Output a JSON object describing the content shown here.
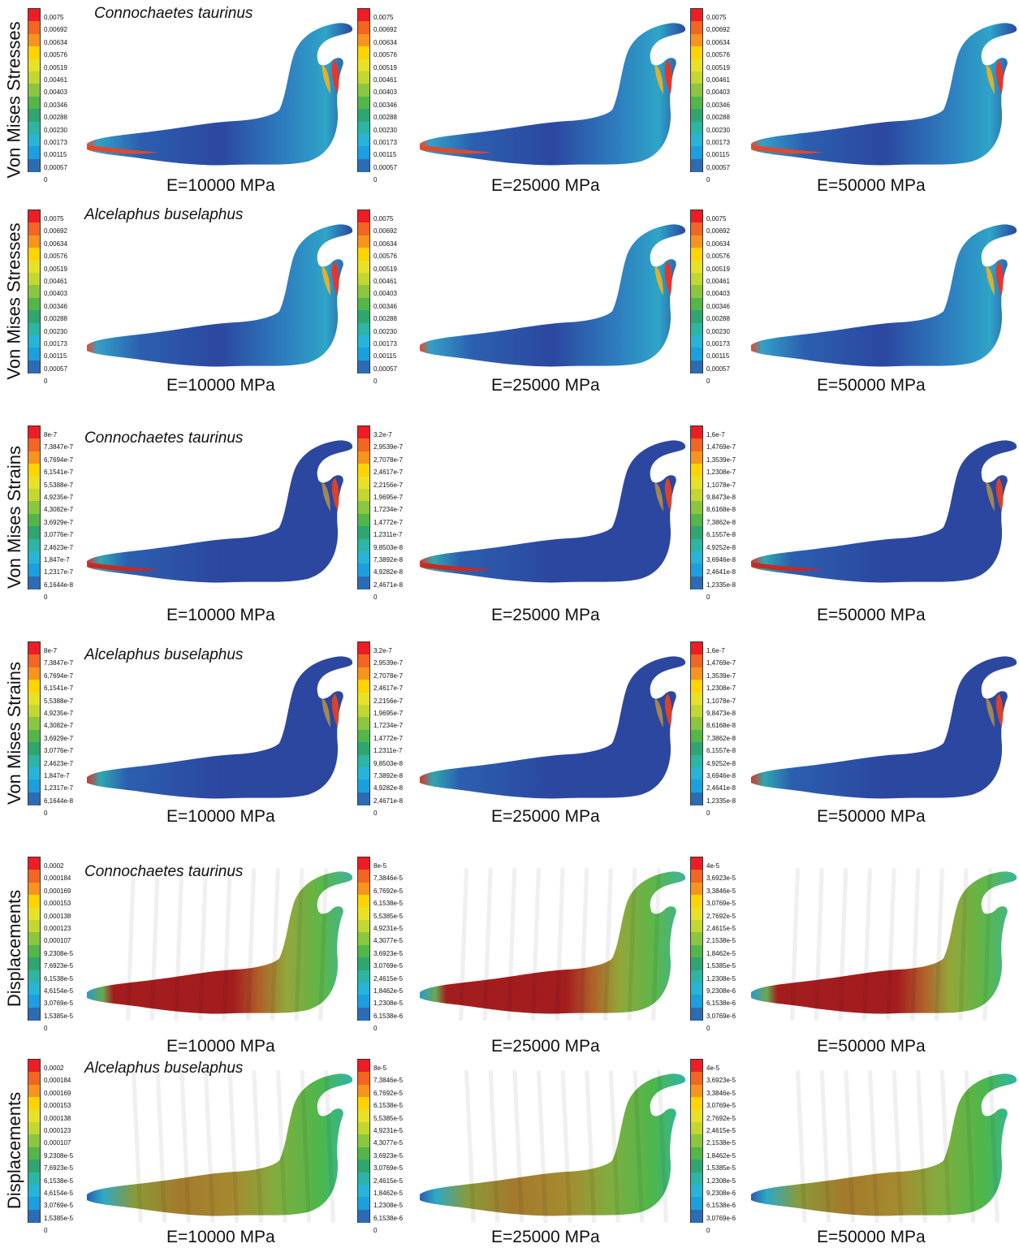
{
  "row_labels": {
    "stress": "Von Mises Stresses",
    "strain": "Von Mises Strains",
    "disp": "Displacements"
  },
  "species": {
    "connochaetes": "Connochaetes taurinus",
    "alcelaphus": "Alcelaphus buselaphus"
  },
  "moduli": [
    "E=10000 MPa",
    "E=25000 MPa",
    "E=50000 MPa"
  ],
  "colors": {
    "scale": [
      "#ee1c24",
      "#f26522",
      "#f7941d",
      "#ffd400",
      "#e7e227",
      "#c3d72f",
      "#8bc63f",
      "#52b748",
      "#2fa670",
      "#2cb5a5",
      "#26b5d6",
      "#1c9fde",
      "#2b6cb5",
      "#2e4a9f"
    ],
    "stress_map_primary": "#2c47a0",
    "disp_map_high": "#a31d1f"
  },
  "legends": {
    "stress": [
      "0,0075",
      "0,00692",
      "0,00634",
      "0,00576",
      "0,00519",
      "0,00461",
      "0,00403",
      "0,00346",
      "0,00288",
      "0,00230",
      "0,00173",
      "0,00115",
      "0,00057",
      "0"
    ],
    "strain_10000": [
      "8e-7",
      "7,3847e-7",
      "6,7694e-7",
      "6,1541e-7",
      "5,5388e-7",
      "4,9235e-7",
      "4,3082e-7",
      "3,6929e-7",
      "3,0776e-7",
      "2,4623e-7",
      "1,847e-7",
      "1,2317e-7",
      "6,1644e-8",
      "0"
    ],
    "strain_25000": [
      "3,2e-7",
      "2,9539e-7",
      "2,7078e-7",
      "2,4617e-7",
      "2,2156e-7",
      "1,9695e-7",
      "1,7234e-7",
      "1,4772e-7",
      "1,2311e-7",
      "9,8503e-8",
      "7,3892e-8",
      "4,9282e-8",
      "2,4671e-8",
      "0"
    ],
    "strain_50000": [
      "1,6e-7",
      "1,4769e-7",
      "1,3539e-7",
      "1,2308e-7",
      "1,1078e-7",
      "9,8473e-8",
      "8,6168e-8",
      "7,3862e-8",
      "6,1557e-8",
      "4,9252e-8",
      "3,6946e-8",
      "2,4641e-8",
      "1,2335e-8",
      "0"
    ],
    "disp_10000": [
      "0,0002",
      "0,000184",
      "0,000169",
      "0,000153",
      "0,000138",
      "0,000123",
      "0,000107",
      "9,2308e-5",
      "7,6923e-5",
      "6,1538e-5",
      "4,6154e-5",
      "3,0769e-5",
      "1,5385e-5",
      "0"
    ],
    "disp_25000": [
      "8e-5",
      "7,3846e-5",
      "6,7692e-5",
      "6,1538e-5",
      "5,5385e-5",
      "4,9231e-5",
      "4,3077e-5",
      "3,6923e-5",
      "3,0769e-5",
      "2,4615e-5",
      "1,8462e-5",
      "1,2308e-5",
      "6,1538e-6",
      "0"
    ],
    "disp_50000": [
      "4e-5",
      "3,6923e-5",
      "3,3846e-5",
      "3,0769e-5",
      "2,7692e-5",
      "2,4615e-5",
      "2,1538e-5",
      "1,8462e-5",
      "1,5385e-5",
      "1,2308e-5",
      "9,2308e-6",
      "6,1538e-6",
      "3,0769e-6",
      "0"
    ]
  }
}
